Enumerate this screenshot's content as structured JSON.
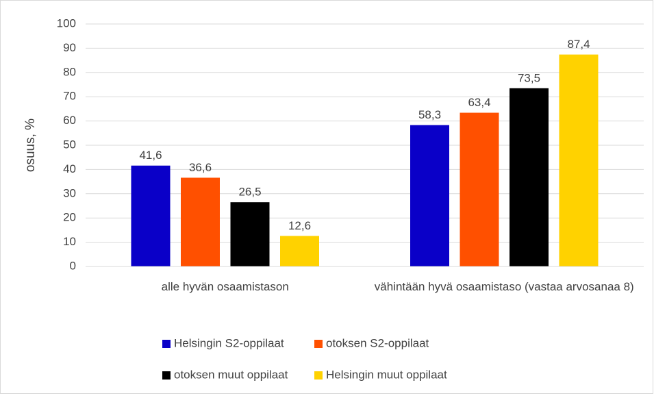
{
  "chart_data": {
    "type": "bar",
    "ylabel": "osuus, %",
    "categories": [
      "alle hyvän osaamistason",
      "vähintään hyvä osaamistaso (vastaa arvosanaa 8)"
    ],
    "series": [
      {
        "name": "Helsingin S2-oppilaat",
        "color": "#0a00c8",
        "values": [
          41.6,
          58.3
        ],
        "value_labels": [
          "41,6",
          "58,3"
        ]
      },
      {
        "name": "otoksen S2-oppilaat",
        "color": "#ff5000",
        "values": [
          36.6,
          63.4
        ],
        "value_labels": [
          "36,6",
          "63,4"
        ]
      },
      {
        "name": "otoksen muut oppilaat",
        "color": "#000000",
        "values": [
          26.5,
          73.5
        ],
        "value_labels": [
          "26,5",
          "73,5"
        ]
      },
      {
        "name": "Helsingin muut oppilaat",
        "color": "#ffd200",
        "values": [
          12.6,
          87.4
        ],
        "value_labels": [
          "12,6",
          "87,4"
        ]
      }
    ],
    "ylim": [
      0,
      100
    ],
    "yticks": [
      0,
      10,
      20,
      30,
      40,
      50,
      60,
      70,
      80,
      90,
      100
    ],
    "grid": true
  }
}
